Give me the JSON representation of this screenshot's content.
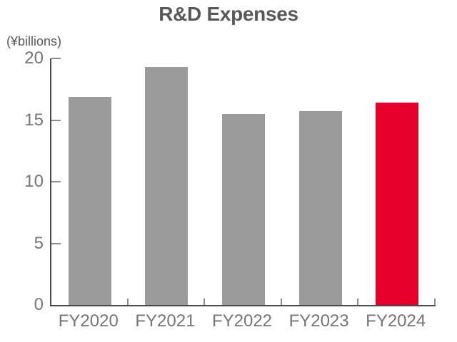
{
  "title": "R&D Expenses",
  "axis_unit_label": "(¥billions)",
  "colors": {
    "bar": "#9b9b9b",
    "highlight": "#e60029",
    "title_text": "#595757",
    "axis_text": "#767575",
    "axis_line": "#4b4b4b",
    "tick_mark": "#8c8c8c"
  },
  "chart_data": {
    "type": "bar",
    "categories": [
      "FY2020",
      "FY2021",
      "FY2022",
      "FY2023",
      "FY2024"
    ],
    "values": [
      16.9,
      19.3,
      15.5,
      15.7,
      16.4
    ],
    "highlight_index": 4,
    "title": "R&D Expenses",
    "xlabel": "",
    "ylabel": "(¥billions)",
    "ylim": [
      0,
      20
    ],
    "yticks": [
      0,
      5,
      10,
      15,
      20
    ],
    "grid": false,
    "legend": false
  }
}
